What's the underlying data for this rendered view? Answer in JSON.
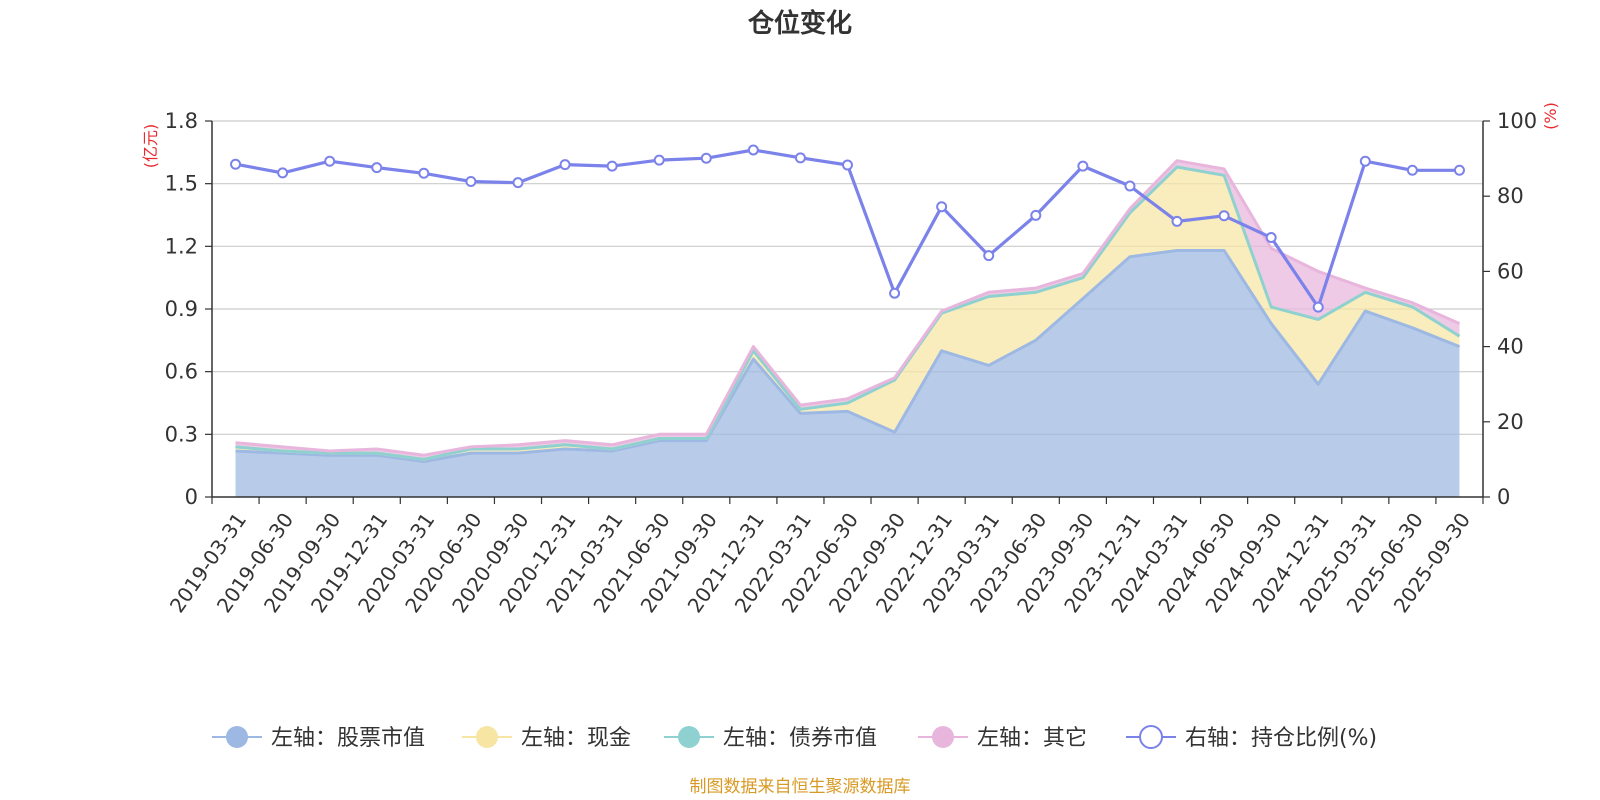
{
  "chart_data": {
    "type": "area",
    "title": "仓位变化",
    "left_unit": "(亿元)",
    "right_unit": "(%)",
    "left_ylim": [
      0,
      1.8
    ],
    "left_ticks": [
      "0",
      "0.3",
      "0.6",
      "0.9",
      "1.2",
      "1.5",
      "1.8"
    ],
    "right_ylim": [
      0,
      100
    ],
    "right_ticks": [
      "0",
      "20",
      "40",
      "60",
      "80",
      "100"
    ],
    "grid": true,
    "legend_position": "bottom",
    "x": [
      "2019-03-31",
      "2019-06-30",
      "2019-09-30",
      "2019-12-31",
      "2020-03-31",
      "2020-06-30",
      "2020-09-30",
      "2020-12-31",
      "2021-03-31",
      "2021-06-30",
      "2021-09-30",
      "2021-12-31",
      "2022-03-31",
      "2022-06-30",
      "2022-09-30",
      "2022-12-31",
      "2023-03-31",
      "2023-06-30",
      "2023-09-30",
      "2023-12-31",
      "2024-03-31",
      "2024-06-30",
      "2024-09-30",
      "2024-12-31",
      "2025-03-31",
      "2025-06-30",
      "2025-09-30"
    ],
    "series": [
      {
        "name": "左轴：股票市值",
        "axis": "left",
        "color": "#9db8e2",
        "values": [
          0.22,
          0.21,
          0.2,
          0.2,
          0.17,
          0.21,
          0.21,
          0.23,
          0.22,
          0.27,
          0.27,
          0.66,
          0.4,
          0.41,
          0.31,
          0.7,
          0.63,
          0.75,
          0.95,
          1.15,
          1.18,
          1.18,
          0.83,
          0.54,
          0.89,
          0.81,
          0.72
        ]
      },
      {
        "name": "左轴：现金",
        "axis": "left",
        "color": "#f7e5a4",
        "values": [
          0.02,
          0.01,
          0.01,
          0.01,
          0.01,
          0.02,
          0.02,
          0.02,
          0.01,
          0.01,
          0.01,
          0.04,
          0.02,
          0.04,
          0.25,
          0.18,
          0.33,
          0.23,
          0.1,
          0.21,
          0.4,
          0.36,
          0.08,
          0.31,
          0.09,
          0.1,
          0.05
        ]
      },
      {
        "name": "左轴：债券市值",
        "axis": "left",
        "color": "#8fd1d1",
        "values": [
          0,
          0,
          0,
          0,
          0,
          0,
          0,
          0,
          0,
          0,
          0,
          0,
          0,
          0,
          0,
          0,
          0,
          0,
          0,
          0,
          0,
          0,
          0,
          0,
          0,
          0,
          0
        ]
      },
      {
        "name": "左轴：其它",
        "axis": "left",
        "color": "#e8b6dc",
        "values": [
          0.02,
          0.02,
          0.01,
          0.02,
          0.02,
          0.01,
          0.02,
          0.02,
          0.02,
          0.02,
          0.02,
          0.02,
          0.02,
          0.02,
          0.01,
          0.01,
          0.02,
          0.02,
          0.02,
          0.02,
          0.03,
          0.03,
          0.28,
          0.23,
          0.02,
          0.02,
          0.06
        ]
      },
      {
        "name": "右轴：持仓比例(%)",
        "axis": "right",
        "color": "#7b82ea",
        "values": [
          88.5,
          86.2,
          89.3,
          87.6,
          86.1,
          83.9,
          83.6,
          88.4,
          88.0,
          89.6,
          90.1,
          92.3,
          90.2,
          88.3,
          54.2,
          77.2,
          64.2,
          74.9,
          88.0,
          82.7,
          73.3,
          74.8,
          69.0,
          50.5,
          89.3,
          86.9,
          86.9
        ]
      }
    ],
    "source_note": "制图数据来自恒生聚源数据库"
  }
}
